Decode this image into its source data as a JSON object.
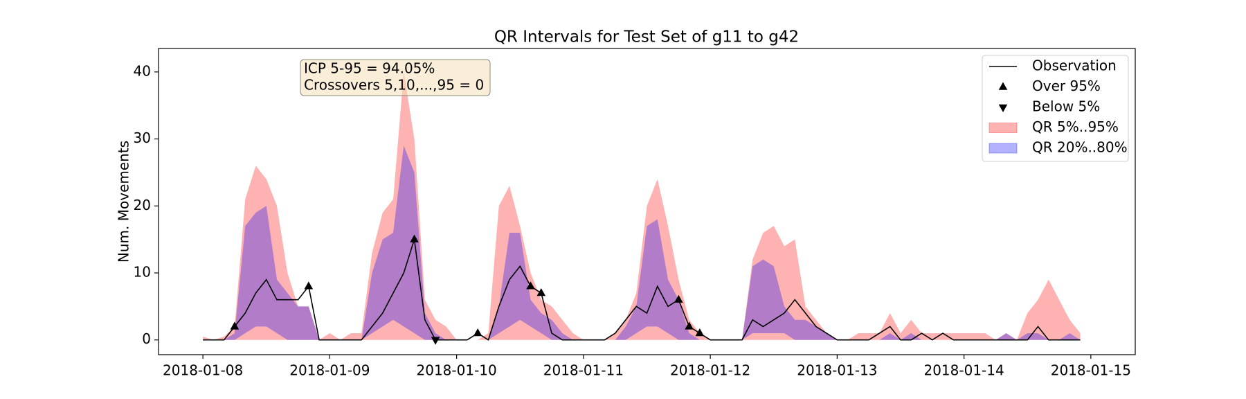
{
  "chart_data": {
    "type": "line",
    "title": "QR Intervals for Test Set of g11 to g42",
    "ylabel": "Num. Movements",
    "annotation": [
      "ICP 5-95 = 94.05%",
      "Crossovers 5,10,...,95 = 0"
    ],
    "xlim": [
      "2018-01-07 15:36",
      "2018-01-15 08:24"
    ],
    "xticks": [
      {
        "value": "2018-01-08 00:00",
        "label": "2018-01-08"
      },
      {
        "value": "2018-01-09 00:00",
        "label": "2018-01-09"
      },
      {
        "value": "2018-01-10 00:00",
        "label": "2018-01-10"
      },
      {
        "value": "2018-01-11 00:00",
        "label": "2018-01-11"
      },
      {
        "value": "2018-01-12 00:00",
        "label": "2018-01-12"
      },
      {
        "value": "2018-01-13 00:00",
        "label": "2018-01-13"
      },
      {
        "value": "2018-01-14 00:00",
        "label": "2018-01-14"
      },
      {
        "value": "2018-01-15 00:00",
        "label": "2018-01-15"
      }
    ],
    "ylim": [
      -2.2,
      43.5
    ],
    "yticks": [
      0,
      10,
      20,
      30,
      40
    ],
    "legend": "upper right",
    "x": [
      "2018-01-08 00:00",
      "2018-01-08 02:00",
      "2018-01-08 04:00",
      "2018-01-08 06:00",
      "2018-01-08 08:00",
      "2018-01-08 10:00",
      "2018-01-08 12:00",
      "2018-01-08 14:00",
      "2018-01-08 16:00",
      "2018-01-08 18:00",
      "2018-01-08 20:00",
      "2018-01-08 22:00",
      "2018-01-09 00:00",
      "2018-01-09 02:00",
      "2018-01-09 04:00",
      "2018-01-09 06:00",
      "2018-01-09 08:00",
      "2018-01-09 10:00",
      "2018-01-09 12:00",
      "2018-01-09 14:00",
      "2018-01-09 16:00",
      "2018-01-09 18:00",
      "2018-01-09 20:00",
      "2018-01-09 22:00",
      "2018-01-10 00:00",
      "2018-01-10 02:00",
      "2018-01-10 04:00",
      "2018-01-10 06:00",
      "2018-01-10 08:00",
      "2018-01-10 10:00",
      "2018-01-10 12:00",
      "2018-01-10 14:00",
      "2018-01-10 16:00",
      "2018-01-10 18:00",
      "2018-01-10 20:00",
      "2018-01-10 22:00",
      "2018-01-11 00:00",
      "2018-01-11 02:00",
      "2018-01-11 04:00",
      "2018-01-11 06:00",
      "2018-01-11 08:00",
      "2018-01-11 10:00",
      "2018-01-11 12:00",
      "2018-01-11 14:00",
      "2018-01-11 16:00",
      "2018-01-11 18:00",
      "2018-01-11 20:00",
      "2018-01-11 22:00",
      "2018-01-12 00:00",
      "2018-01-12 02:00",
      "2018-01-12 04:00",
      "2018-01-12 06:00",
      "2018-01-12 08:00",
      "2018-01-12 10:00",
      "2018-01-12 12:00",
      "2018-01-12 14:00",
      "2018-01-12 16:00",
      "2018-01-12 18:00",
      "2018-01-12 20:00",
      "2018-01-12 22:00",
      "2018-01-13 00:00",
      "2018-01-13 02:00",
      "2018-01-13 04:00",
      "2018-01-13 06:00",
      "2018-01-13 08:00",
      "2018-01-13 10:00",
      "2018-01-13 12:00",
      "2018-01-13 14:00",
      "2018-01-13 16:00",
      "2018-01-13 18:00",
      "2018-01-13 20:00",
      "2018-01-13 22:00",
      "2018-01-14 00:00",
      "2018-01-14 02:00",
      "2018-01-14 04:00",
      "2018-01-14 06:00",
      "2018-01-14 08:00",
      "2018-01-14 10:00",
      "2018-01-14 12:00",
      "2018-01-14 14:00",
      "2018-01-14 16:00",
      "2018-01-14 18:00",
      "2018-01-14 20:00",
      "2018-01-14 22:00"
    ],
    "series": [
      {
        "name": "Observation",
        "kind": "line",
        "color": "#000000",
        "values": [
          0,
          0,
          0,
          2,
          4,
          7,
          9,
          6,
          6,
          6,
          8,
          0,
          0,
          0,
          0,
          0,
          2,
          4,
          7,
          10,
          15,
          3,
          0,
          0,
          0,
          0,
          1,
          0,
          5,
          9,
          11,
          8,
          7,
          1,
          0,
          0,
          0,
          0,
          0,
          1,
          3,
          5,
          4,
          8,
          5,
          6,
          2,
          1,
          0,
          0,
          0,
          0,
          3,
          2,
          3,
          4,
          6,
          4,
          2,
          1,
          0,
          0,
          0,
          0,
          1,
          2,
          0,
          0,
          1,
          0,
          1,
          0,
          0,
          0,
          0,
          0,
          0,
          0,
          0,
          2,
          0,
          0,
          0,
          0
        ]
      },
      {
        "name": "Over 95%",
        "kind": "up",
        "color": "#000000",
        "x": [
          "2018-01-08 06:00",
          "2018-01-08 20:00",
          "2018-01-09 16:00",
          "2018-01-10 04:00",
          "2018-01-10 14:00",
          "2018-01-10 16:00",
          "2018-01-11 18:00",
          "2018-01-11 20:00",
          "2018-01-11 22:00"
        ],
        "values": [
          2,
          8,
          15,
          1,
          8,
          7,
          6,
          2,
          1
        ]
      },
      {
        "name": "Below 5%",
        "kind": "down",
        "color": "#000000",
        "x": [
          "2018-01-09 20:00"
        ],
        "values": [
          0
        ]
      },
      {
        "name": "QR 5%..95%",
        "kind": "band",
        "color": "#ff0000",
        "alpha": 0.3,
        "lower": [
          0,
          0,
          0,
          0,
          0,
          0,
          0,
          0,
          0,
          0,
          0,
          0,
          0,
          0,
          0,
          0,
          0,
          0,
          0,
          0,
          0,
          0,
          0,
          0,
          0,
          0,
          0,
          0,
          0,
          0,
          0,
          0,
          0,
          0,
          0,
          0,
          0,
          0,
          0,
          0,
          0,
          0,
          0,
          0,
          0,
          0,
          0,
          0,
          0,
          0,
          0,
          0,
          0,
          0,
          0,
          0,
          0,
          0,
          0,
          0,
          0,
          0,
          0,
          0,
          0,
          0,
          0,
          0,
          0,
          0,
          0,
          0,
          0,
          0,
          0,
          0,
          0,
          0,
          0,
          0,
          0,
          0,
          0,
          0
        ],
        "upper": [
          0.5,
          0,
          0.5,
          2,
          21,
          26,
          24,
          20,
          10,
          5,
          5,
          0,
          1,
          0,
          1,
          1,
          13,
          19,
          21,
          40,
          30,
          6,
          3,
          2,
          0,
          0,
          0,
          1,
          20,
          23,
          17,
          10,
          6,
          5,
          3,
          1,
          0,
          0,
          0,
          1,
          3,
          7,
          20,
          24,
          17,
          9,
          3,
          1,
          0,
          0,
          0,
          0,
          12,
          16,
          17,
          14,
          15,
          5,
          3,
          1,
          0,
          0,
          1,
          1,
          1,
          4,
          1,
          3,
          1,
          1,
          1,
          1,
          1,
          1,
          1,
          0,
          1,
          0,
          4,
          6,
          9,
          6,
          3,
          1
        ]
      },
      {
        "name": "QR 20%..80%",
        "kind": "band",
        "color": "#0000ff",
        "alpha": 0.3,
        "lower": [
          0,
          0,
          0,
          0,
          1,
          2,
          2,
          1,
          0,
          0,
          0,
          0,
          0,
          0,
          0,
          0,
          1,
          2,
          3,
          2,
          1,
          0,
          0,
          0,
          0,
          0,
          0,
          0,
          1,
          2,
          3,
          2,
          1,
          0,
          0,
          0,
          0,
          0,
          0,
          0,
          0,
          1,
          2,
          2,
          1,
          0,
          0,
          0,
          0,
          0,
          0,
          0,
          1,
          1,
          1,
          1,
          0,
          0,
          0,
          0,
          0,
          0,
          0,
          0,
          0,
          0,
          0,
          0,
          0,
          0,
          0,
          0,
          0,
          0,
          0,
          0,
          0,
          0,
          0,
          0,
          0,
          0,
          0,
          0
        ],
        "upper": [
          0,
          0,
          0,
          1,
          17,
          19,
          20,
          9,
          7,
          5,
          5,
          0,
          0,
          0,
          0,
          0,
          10,
          15,
          16,
          29,
          25,
          4,
          1,
          0,
          0,
          0,
          0,
          0,
          5,
          16,
          16,
          6,
          4,
          3,
          1,
          0,
          0,
          0,
          0,
          0,
          2,
          5,
          17,
          18,
          9,
          6,
          1,
          0,
          0,
          0,
          0,
          0,
          11,
          12,
          11,
          5,
          3,
          3,
          2,
          1,
          0,
          0,
          0,
          0,
          0,
          1,
          0,
          1,
          0,
          0,
          0,
          0,
          0,
          0,
          0,
          0,
          1,
          0,
          1,
          1,
          0,
          0,
          1,
          0
        ]
      }
    ]
  }
}
